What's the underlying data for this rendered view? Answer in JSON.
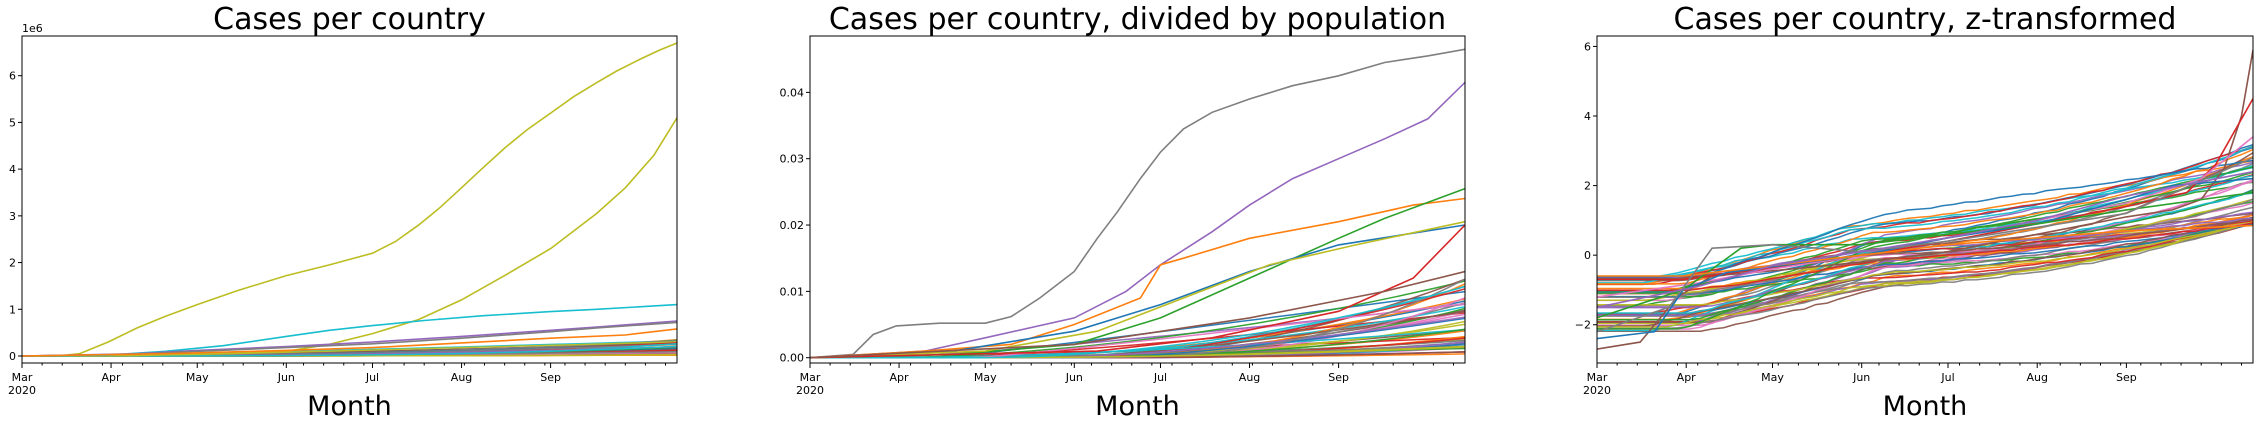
{
  "chart_data": [
    {
      "type": "line",
      "title": "Cases per country",
      "xlabel": "Month",
      "ylabel": "",
      "x_ticks": [
        "Mar\n2020",
        "Apr",
        "May",
        "Jun",
        "Jul",
        "Aug",
        "Sep"
      ],
      "y_ticks": [
        "0",
        "1",
        "2",
        "3",
        "4",
        "5",
        "6"
      ],
      "y_offset": "1e6",
      "ylim": [
        -0.15,
        6.85
      ],
      "x_range_days": [
        0,
        200
      ],
      "highlight_series": [
        {
          "color": "#bcbd22",
          "points": [
            [
              0,
              0
            ],
            [
              14,
              0.01
            ],
            [
              20,
              0.05
            ],
            [
              30,
              0.3
            ],
            [
              40,
              0.6
            ],
            [
              50,
              0.85
            ],
            [
              61,
              1.1
            ],
            [
              75,
              1.4
            ],
            [
              92,
              1.72
            ],
            [
              107,
              1.95
            ],
            [
              122,
              2.2
            ],
            [
              130,
              2.45
            ],
            [
              138,
              2.8
            ],
            [
              145,
              3.15
            ],
            [
              153,
              3.6
            ],
            [
              160,
              4.0
            ],
            [
              168,
              4.45
            ],
            [
              176,
              4.85
            ],
            [
              184,
              5.2
            ],
            [
              192,
              5.55
            ],
            [
              200,
              5.85
            ],
            [
              207,
              6.1
            ],
            [
              215,
              6.35
            ],
            [
              222,
              6.55
            ],
            [
              228,
              6.7
            ]
          ]
        },
        {
          "color": "#bcbd22",
          "points": [
            [
              0,
              0
            ],
            [
              40,
              0.01
            ],
            [
              70,
              0.05
            ],
            [
              92,
              0.1
            ],
            [
              107,
              0.25
            ],
            [
              122,
              0.48
            ],
            [
              138,
              0.78
            ],
            [
              153,
              1.2
            ],
            [
              168,
              1.72
            ],
            [
              184,
              2.3
            ],
            [
              200,
              3.05
            ],
            [
              210,
              3.6
            ],
            [
              220,
              4.3
            ],
            [
              228,
              5.1
            ]
          ]
        },
        {
          "color": "#17becf",
          "points": [
            [
              0,
              0
            ],
            [
              30,
              0.02
            ],
            [
              50,
              0.1
            ],
            [
              70,
              0.22
            ],
            [
              92,
              0.42
            ],
            [
              107,
              0.55
            ],
            [
              122,
              0.65
            ],
            [
              140,
              0.76
            ],
            [
              160,
              0.86
            ],
            [
              184,
              0.95
            ],
            [
              200,
              1.0
            ],
            [
              228,
              1.1
            ]
          ]
        },
        {
          "color": "#9467bd",
          "points": [
            [
              0,
              0
            ],
            [
              40,
              0.05
            ],
            [
              61,
              0.12
            ],
            [
              92,
              0.2
            ],
            [
              122,
              0.3
            ],
            [
              153,
              0.42
            ],
            [
              184,
              0.55
            ],
            [
              200,
              0.62
            ],
            [
              228,
              0.75
            ]
          ]
        },
        {
          "color": "#7f7f7f",
          "points": [
            [
              0,
              0
            ],
            [
              40,
              0.04
            ],
            [
              61,
              0.1
            ],
            [
              92,
              0.18
            ],
            [
              122,
              0.26
            ],
            [
              153,
              0.38
            ],
            [
              184,
              0.52
            ],
            [
              200,
              0.6
            ],
            [
              228,
              0.72
            ]
          ]
        },
        {
          "color": "#ff7f0e",
          "points": [
            [
              0,
              0
            ],
            [
              50,
              0.05
            ],
            [
              92,
              0.12
            ],
            [
              122,
              0.18
            ],
            [
              153,
              0.28
            ],
            [
              184,
              0.38
            ],
            [
              210,
              0.45
            ],
            [
              228,
              0.58
            ]
          ]
        }
      ],
      "bundle": {
        "count": 50,
        "end_min": 0.02,
        "end_max": 0.35,
        "onset_min": 10,
        "onset_max": 60
      }
    },
    {
      "type": "line",
      "title": "Cases per country, divided by population",
      "xlabel": "Month",
      "ylabel": "",
      "x_ticks": [
        "Mar\n2020",
        "Apr",
        "May",
        "Jun",
        "Jul",
        "Aug",
        "Sep"
      ],
      "y_ticks": [
        "0.00",
        "0.01",
        "0.02",
        "0.03",
        "0.04"
      ],
      "y_offset": "",
      "ylim": [
        -0.0008,
        0.0485
      ],
      "x_range_days": [
        0,
        200
      ],
      "highlight_series": [
        {
          "color": "#7f7f7f",
          "points": [
            [
              0,
              0
            ],
            [
              15,
              0.0005
            ],
            [
              22,
              0.0035
            ],
            [
              30,
              0.0048
            ],
            [
              45,
              0.0052
            ],
            [
              61,
              0.0052
            ],
            [
              70,
              0.0062
            ],
            [
              80,
              0.009
            ],
            [
              92,
              0.013
            ],
            [
              100,
              0.018
            ],
            [
              107,
              0.022
            ],
            [
              115,
              0.027
            ],
            [
              122,
              0.031
            ],
            [
              130,
              0.0345
            ],
            [
              140,
              0.037
            ],
            [
              153,
              0.039
            ],
            [
              168,
              0.041
            ],
            [
              184,
              0.0425
            ],
            [
              200,
              0.0445
            ],
            [
              215,
              0.0455
            ],
            [
              228,
              0.0465
            ]
          ]
        },
        {
          "color": "#9467bd",
          "points": [
            [
              0,
              0
            ],
            [
              40,
              0.001
            ],
            [
              61,
              0.003
            ],
            [
              92,
              0.006
            ],
            [
              110,
              0.01
            ],
            [
              122,
              0.014
            ],
            [
              140,
              0.019
            ],
            [
              153,
              0.023
            ],
            [
              168,
              0.027
            ],
            [
              184,
              0.03
            ],
            [
              200,
              0.033
            ],
            [
              215,
              0.036
            ],
            [
              228,
              0.0415
            ]
          ]
        },
        {
          "color": "#ff7f0e",
          "points": [
            [
              0,
              0
            ],
            [
              40,
              0.001
            ],
            [
              70,
              0.002
            ],
            [
              92,
              0.005
            ],
            [
              115,
              0.009
            ],
            [
              122,
              0.014
            ],
            [
              130,
              0.015
            ],
            [
              153,
              0.018
            ],
            [
              184,
              0.0205
            ],
            [
              210,
              0.023
            ],
            [
              228,
              0.024
            ]
          ]
        },
        {
          "color": "#2ca02c",
          "points": [
            [
              0,
              0
            ],
            [
              50,
              0.0005
            ],
            [
              92,
              0.002
            ],
            [
              122,
              0.006
            ],
            [
              153,
              0.012
            ],
            [
              184,
              0.018
            ],
            [
              200,
              0.021
            ],
            [
              228,
              0.0255
            ]
          ]
        },
        {
          "color": "#1f77b4",
          "points": [
            [
              0,
              0
            ],
            [
              50,
              0.001
            ],
            [
              92,
              0.004
            ],
            [
              122,
              0.008
            ],
            [
              153,
              0.013
            ],
            [
              184,
              0.017
            ],
            [
              228,
              0.02
            ]
          ]
        },
        {
          "color": "#bcbd22",
          "points": [
            [
              0,
              0
            ],
            [
              61,
              0.001
            ],
            [
              100,
              0.004
            ],
            [
              130,
              0.009
            ],
            [
              160,
              0.014
            ],
            [
              190,
              0.017
            ],
            [
              228,
              0.0205
            ]
          ]
        },
        {
          "color": "#d62728",
          "points": [
            [
              0,
              0
            ],
            [
              100,
              0.001
            ],
            [
              140,
              0.003
            ],
            [
              184,
              0.007
            ],
            [
              210,
              0.012
            ],
            [
              228,
              0.02
            ]
          ]
        },
        {
          "color": "#8c564b",
          "points": [
            [
              0,
              0
            ],
            [
              92,
              0.002
            ],
            [
              153,
              0.006
            ],
            [
              200,
              0.01
            ],
            [
              228,
              0.013
            ]
          ]
        }
      ],
      "bundle": {
        "count": 50,
        "end_min": 0.0005,
        "end_max": 0.012,
        "onset_min": 20,
        "onset_max": 110
      }
    },
    {
      "type": "line",
      "title": "Cases per country, z-transformed",
      "xlabel": "Month",
      "ylabel": "",
      "x_ticks": [
        "Mar\n2020",
        "Apr",
        "May",
        "Jun",
        "Jul",
        "Aug",
        "Sep"
      ],
      "y_ticks": [
        "−2",
        "0",
        "2",
        "4",
        "6"
      ],
      "y_offset": "",
      "ylim": [
        -3.1,
        6.3
      ],
      "x_range_days": [
        0,
        200
      ],
      "highlight_series": [
        {
          "color": "#8c564b",
          "points": [
            [
              0,
              -2.7
            ],
            [
              15,
              -2.5
            ],
            [
              28,
              -1.2
            ],
            [
              40,
              -0.6
            ],
            [
              61,
              -0.45
            ],
            [
              92,
              -0.2
            ],
            [
              122,
              0.1
            ],
            [
              153,
              0.6
            ],
            [
              184,
              1.1
            ],
            [
              200,
              1.3
            ],
            [
              210,
              1.6
            ],
            [
              218,
              2.5
            ],
            [
              224,
              4.0
            ],
            [
              228,
              5.9
            ]
          ]
        },
        {
          "color": "#d62728",
          "points": [
            [
              0,
              -0.7
            ],
            [
              30,
              -0.7
            ],
            [
              61,
              -0.35
            ],
            [
              92,
              0.0
            ],
            [
              122,
              0.4
            ],
            [
              153,
              0.9
            ],
            [
              184,
              1.4
            ],
            [
              205,
              1.8
            ],
            [
              215,
              2.6
            ],
            [
              228,
              4.5
            ]
          ]
        },
        {
          "color": "#e377c2",
          "points": [
            [
              0,
              -1.2
            ],
            [
              35,
              -0.8
            ],
            [
              61,
              -0.4
            ],
            [
              92,
              0.0
            ],
            [
              122,
              0.5
            ],
            [
              153,
              1.0
            ],
            [
              184,
              1.5
            ],
            [
              210,
              2.2
            ],
            [
              228,
              3.4
            ]
          ]
        },
        {
          "color": "#1f77b4",
          "points": [
            [
              0,
              -2.4
            ],
            [
              20,
              -2.2
            ],
            [
              30,
              -1.0
            ],
            [
              45,
              -0.5
            ],
            [
              92,
              0.0
            ],
            [
              122,
              0.5
            ],
            [
              153,
              0.9
            ],
            [
              184,
              1.6
            ],
            [
              200,
              2.0
            ],
            [
              228,
              2.2
            ]
          ]
        },
        {
          "color": "#2ca02c",
          "points": [
            [
              0,
              -1.8
            ],
            [
              30,
              -1.0
            ],
            [
              50,
              0.2
            ],
            [
              61,
              0.3
            ],
            [
              92,
              0.3
            ],
            [
              122,
              0.6
            ],
            [
              153,
              0.9
            ],
            [
              184,
              1.3
            ],
            [
              228,
              1.8
            ]
          ]
        },
        {
          "color": "#ff7f0e",
          "points": [
            [
              0,
              -0.6
            ],
            [
              30,
              -0.6
            ],
            [
              61,
              -0.3
            ],
            [
              92,
              0.0
            ],
            [
              122,
              0.3
            ],
            [
              153,
              0.5
            ],
            [
              184,
              0.7
            ],
            [
              228,
              0.85
            ]
          ]
        },
        {
          "color": "#7f7f7f",
          "points": [
            [
              0,
              -2.2
            ],
            [
              25,
              -1.5
            ],
            [
              40,
              0.2
            ],
            [
              61,
              0.3
            ],
            [
              92,
              0.1
            ],
            [
              122,
              0.4
            ],
            [
              153,
              0.8
            ],
            [
              184,
              1.2
            ],
            [
              228,
              2.8
            ]
          ]
        },
        {
          "color": "#9467bd",
          "points": [
            [
              0,
              -1.5
            ],
            [
              35,
              -0.9
            ],
            [
              61,
              -0.3
            ],
            [
              92,
              0.1
            ],
            [
              122,
              0.5
            ],
            [
              153,
              1.0
            ],
            [
              184,
              1.7
            ],
            [
              228,
              2.4
            ]
          ]
        }
      ],
      "bundle": {
        "count": 56,
        "end_min": 0.9,
        "end_max": 3.2,
        "onset_min": 0,
        "onset_max": 40,
        "ztrans": true
      }
    }
  ]
}
